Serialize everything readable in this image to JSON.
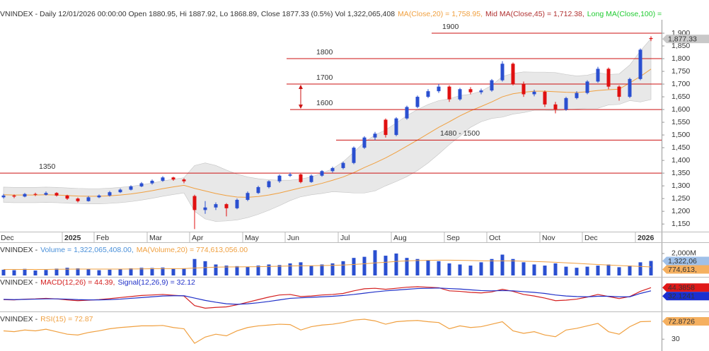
{
  "chart_data": [
    {
      "type": "candlestick",
      "header": [
        {
          "text": "VNINDEX - Daily 12/01/2026 00:00:00 Open 1880.95, Hi 1887.92, Lo 1868.89, Close 1877.33 (0.5%) Vol 1,322,065,408",
          "color": "#333333"
        },
        {
          "text": "MA(Close,20) = 1,758.95,",
          "color": "#f0a040"
        },
        {
          "text": "Mid MA(Close,45) = 1,712.38,",
          "color": "#b03030"
        },
        {
          "text": "Long MA(Close,100) =",
          "color": "#22cc33"
        }
      ],
      "categories": [
        "Dec",
        null,
        null,
        null,
        null,
        null,
        "2025",
        null,
        null,
        "Feb",
        null,
        null,
        null,
        null,
        "Mar",
        null,
        null,
        null,
        "Apr",
        null,
        null,
        null,
        null,
        "May",
        null,
        null,
        null,
        "Jun",
        null,
        null,
        null,
        null,
        "Jul",
        null,
        null,
        null,
        null,
        "Aug",
        null,
        null,
        null,
        null,
        "Sep",
        null,
        null,
        null,
        "Oct",
        null,
        null,
        null,
        null,
        "Nov",
        null,
        null,
        null,
        "Dec",
        null,
        null,
        null,
        null,
        "2026",
        null
      ],
      "open": [
        1255,
        1262,
        1258,
        1268,
        1265,
        1272,
        1262,
        1250,
        1240,
        1255,
        1262,
        1275,
        1285,
        1298,
        1310,
        1320,
        1333,
        1325,
        1260,
        1205,
        1215,
        1228,
        1212,
        1245,
        1272,
        1295,
        1318,
        1340,
        1345,
        1315,
        1340,
        1358,
        1370,
        1390,
        1450,
        1490,
        1560,
        1500,
        1565,
        1610,
        1650,
        1672,
        1690,
        1640,
        1680,
        1668,
        1675,
        1715,
        1780,
        1700,
        1660,
        1670,
        1620,
        1600,
        1645,
        1665,
        1710,
        1760,
        1690,
        1650,
        1720,
        1880.95
      ],
      "high": [
        1268,
        1266,
        1272,
        1273,
        1278,
        1275,
        1265,
        1254,
        1260,
        1266,
        1280,
        1290,
        1302,
        1315,
        1325,
        1338,
        1336,
        1330,
        1265,
        1240,
        1235,
        1232,
        1250,
        1278,
        1300,
        1322,
        1345,
        1352,
        1348,
        1345,
        1362,
        1375,
        1395,
        1455,
        1495,
        1512,
        1565,
        1570,
        1615,
        1655,
        1680,
        1700,
        1695,
        1685,
        1688,
        1682,
        1720,
        1790,
        1785,
        1710,
        1678,
        1675,
        1630,
        1650,
        1672,
        1715,
        1768,
        1765,
        1695,
        1725,
        1840,
        1887.92
      ],
      "low": [
        1250,
        1252,
        1255,
        1260,
        1262,
        1258,
        1245,
        1235,
        1238,
        1252,
        1258,
        1272,
        1282,
        1295,
        1305,
        1316,
        1320,
        1310,
        1130,
        1190,
        1205,
        1180,
        1208,
        1240,
        1268,
        1290,
        1312,
        1335,
        1310,
        1312,
        1336,
        1352,
        1365,
        1385,
        1445,
        1480,
        1490,
        1495,
        1560,
        1605,
        1645,
        1665,
        1630,
        1635,
        1660,
        1660,
        1670,
        1710,
        1695,
        1650,
        1652,
        1610,
        1585,
        1595,
        1640,
        1660,
        1705,
        1680,
        1635,
        1645,
        1715,
        1868.89
      ],
      "close": [
        1262,
        1258,
        1268,
        1265,
        1272,
        1262,
        1250,
        1240,
        1255,
        1262,
        1275,
        1285,
        1298,
        1310,
        1320,
        1333,
        1325,
        1318,
        1205,
        1215,
        1228,
        1212,
        1245,
        1272,
        1295,
        1318,
        1340,
        1345,
        1315,
        1340,
        1358,
        1370,
        1390,
        1450,
        1490,
        1505,
        1500,
        1565,
        1610,
        1650,
        1672,
        1690,
        1640,
        1680,
        1668,
        1675,
        1715,
        1780,
        1700,
        1660,
        1670,
        1620,
        1600,
        1645,
        1665,
        1710,
        1760,
        1690,
        1650,
        1720,
        1835,
        1877.33
      ],
      "up_color": "#2a4fd0",
      "down_color": "#e01010",
      "ma20": [
        1265,
        1264,
        1264,
        1264,
        1265,
        1264,
        1262,
        1260,
        1259,
        1259,
        1261,
        1264,
        1268,
        1274,
        1281,
        1289,
        1296,
        1302,
        1290,
        1280,
        1270,
        1262,
        1256,
        1255,
        1258,
        1264,
        1272,
        1282,
        1292,
        1300,
        1310,
        1322,
        1335,
        1352,
        1372,
        1390,
        1410,
        1432,
        1456,
        1480,
        1505,
        1530,
        1552,
        1575,
        1595,
        1612,
        1630,
        1650,
        1662,
        1668,
        1672,
        1672,
        1670,
        1668,
        1667,
        1670,
        1675,
        1678,
        1680,
        1705,
        1730,
        1758.95
      ],
      "ma20_color": "#f0a040",
      "band_upper": [
        1295,
        1294,
        1294,
        1294,
        1295,
        1294,
        1292,
        1290,
        1289,
        1289,
        1291,
        1294,
        1298,
        1304,
        1311,
        1319,
        1326,
        1332,
        1380,
        1390,
        1380,
        1362,
        1346,
        1335,
        1328,
        1324,
        1322,
        1322,
        1327,
        1335,
        1350,
        1367,
        1395,
        1432,
        1472,
        1500,
        1520,
        1547,
        1576,
        1600,
        1620,
        1635,
        1642,
        1655,
        1660,
        1672,
        1695,
        1730,
        1742,
        1748,
        1747,
        1747,
        1745,
        1738,
        1732,
        1735,
        1745,
        1738,
        1740,
        1775,
        1830,
        1879
      ],
      "band_lower": [
        1235,
        1234,
        1234,
        1234,
        1235,
        1234,
        1232,
        1230,
        1229,
        1229,
        1231,
        1234,
        1238,
        1244,
        1251,
        1259,
        1266,
        1272,
        1200,
        1170,
        1160,
        1162,
        1166,
        1175,
        1188,
        1204,
        1222,
        1242,
        1257,
        1265,
        1270,
        1277,
        1275,
        1272,
        1272,
        1280,
        1300,
        1317,
        1336,
        1360,
        1390,
        1425,
        1462,
        1495,
        1530,
        1552,
        1565,
        1570,
        1582,
        1588,
        1597,
        1597,
        1595,
        1598,
        1602,
        1605,
        1605,
        1618,
        1620,
        1635,
        1630,
        1639
      ],
      "band_color": "#e4e4e4",
      "annotations": [
        {
          "label": "1900",
          "value": 1900
        },
        {
          "label": "1800",
          "value": 1800
        },
        {
          "label": "1700",
          "value": 1700
        },
        {
          "label": "1600",
          "value": 1600
        },
        {
          "label": "1480 - 1500",
          "value": 1480
        },
        {
          "label": "1350",
          "value": 1350
        }
      ],
      "annotation_color": "#cc1111",
      "ylim": [
        1120,
        1950
      ],
      "yticks": [
        {
          "value": 1900,
          "label": "1,900"
        },
        {
          "value": 1850,
          "label": "1,850"
        },
        {
          "value": 1800,
          "label": "1,800"
        },
        {
          "value": 1750,
          "label": "1,750"
        },
        {
          "value": 1700,
          "label": "1,700"
        },
        {
          "value": 1650,
          "label": "1,650"
        },
        {
          "value": 1600,
          "label": "1,600"
        },
        {
          "value": 1550,
          "label": "1,550"
        },
        {
          "value": 1500,
          "label": "1,500"
        },
        {
          "value": 1450,
          "label": "1,450"
        },
        {
          "value": 1400,
          "label": "1,400"
        },
        {
          "value": 1350,
          "label": "1,350"
        },
        {
          "value": 1300,
          "label": "1,300"
        },
        {
          "value": 1250,
          "label": "1,250"
        },
        {
          "value": 1200,
          "label": "1,200"
        },
        {
          "value": 1150,
          "label": "1,150"
        }
      ],
      "tags": [
        {
          "value": 1877.33,
          "label": "1,877.33"
        }
      ],
      "tag_colors": [
        "#c8c8c8"
      ],
      "tag_text_colors": [
        "#111111"
      ]
    },
    {
      "type": "bar",
      "header": [
        {
          "text": "VNINDEX -",
          "color": "#333333"
        },
        {
          "text": "Volume = 1,322,065,408.00,",
          "color": "#4a90d9"
        },
        {
          "text": "MA(Volume,20) = 774,613,056.00",
          "color": "#f0a040"
        }
      ],
      "values": [
        520000000,
        480000000,
        600000000,
        450000000,
        500000000,
        620000000,
        700000000,
        650000000,
        550000000,
        480000000,
        520000000,
        600000000,
        650000000,
        700000000,
        680000000,
        720000000,
        600000000,
        650000000,
        1500000000,
        1300000000,
        1000000000,
        900000000,
        850000000,
        800000000,
        900000000,
        1000000000,
        950000000,
        1100000000,
        1200000000,
        900000000,
        1000000000,
        1100000000,
        1300000000,
        1600000000,
        1700000000,
        2300000000,
        1800000000,
        2000000000,
        1600000000,
        1500000000,
        1400000000,
        1300000000,
        1100000000,
        1000000000,
        900000000,
        1200000000,
        1500000000,
        1900000000,
        1500000000,
        1200000000,
        1000000000,
        900000000,
        1100000000,
        800000000,
        700000000,
        800000000,
        900000000,
        1000000000,
        750000000,
        900000000,
        1200000000,
        1322065408
      ],
      "color": "#2a4fd0",
      "ma": [
        550000000,
        550000000,
        550000000,
        550000000,
        550000000,
        560000000,
        570000000,
        580000000,
        580000000,
        580000000,
        580000000,
        580000000,
        590000000,
        600000000,
        610000000,
        620000000,
        620000000,
        620000000,
        680000000,
        720000000,
        760000000,
        770000000,
        780000000,
        790000000,
        800000000,
        820000000,
        840000000,
        860000000,
        880000000,
        890000000,
        900000000,
        920000000,
        950000000,
        1000000000,
        1060000000,
        1140000000,
        1200000000,
        1280000000,
        1330000000,
        1360000000,
        1380000000,
        1390000000,
        1390000000,
        1380000000,
        1360000000,
        1340000000,
        1330000000,
        1330000000,
        1330000000,
        1300000000,
        1270000000,
        1240000000,
        1200000000,
        1150000000,
        1100000000,
        1050000000,
        1000000000,
        950000000,
        900000000,
        860000000,
        820000000,
        774613056
      ],
      "ma_color": "#f0a040",
      "ylim": [
        0,
        2900000000
      ],
      "yticks": [
        {
          "value": 2000000000,
          "label": "2,000M"
        }
      ],
      "tags": [
        {
          "value": 1322065408,
          "label": "1,322,06"
        },
        {
          "value": 774613056,
          "label": "774,613,"
        }
      ],
      "tag_colors": [
        "#9fc0e8",
        "#f5b060"
      ],
      "tag_text_colors": [
        "#111111",
        "#111111"
      ]
    },
    {
      "type": "line",
      "header": [
        {
          "text": "VNINDEX -",
          "color": "#333333"
        },
        {
          "text": "MACD(12,26) = 44.39,",
          "color": "#d42020"
        },
        {
          "text": "Signal(12,26,9) = 32.12",
          "color": "#2030c8"
        }
      ],
      "lines": [
        {
          "color": "#d42020",
          "values": [
            -2,
            -3,
            0,
            1,
            3,
            1,
            -3,
            -6,
            -4,
            -2,
            2,
            6,
            10,
            14,
            16,
            18,
            15,
            12,
            -25,
            -35,
            -32,
            -30,
            -22,
            -12,
            -2,
            8,
            16,
            18,
            10,
            12,
            16,
            18,
            22,
            32,
            40,
            42,
            38,
            42,
            46,
            48,
            46,
            44,
            32,
            30,
            26,
            24,
            28,
            38,
            30,
            18,
            12,
            4,
            -6,
            -4,
            0,
            8,
            18,
            10,
            2,
            10,
            30,
            44.3858
          ]
        },
        {
          "color": "#2030c8",
          "values": [
            -1,
            -2,
            -1,
            0,
            1,
            1,
            0,
            -2,
            -3,
            -3,
            -2,
            0,
            3,
            6,
            9,
            12,
            13,
            13,
            4,
            -5,
            -12,
            -18,
            -20,
            -18,
            -14,
            -9,
            -3,
            3,
            5,
            7,
            9,
            11,
            14,
            18,
            23,
            28,
            32,
            35,
            38,
            41,
            42,
            43,
            41,
            39,
            36,
            33,
            32,
            33,
            32,
            29,
            26,
            22,
            16,
            12,
            10,
            9,
            11,
            11,
            9,
            9,
            22,
            32.1241
          ]
        }
      ],
      "ylim": [
        -45,
        78
      ],
      "yticks": [],
      "tags": [
        44.3858,
        32.1241
      ],
      "tag_colors": [
        "#e01818",
        "#1a2fd0"
      ],
      "tag_text_colors": [
        "#ffffff",
        "#ffffff"
      ]
    },
    {
      "type": "line",
      "header": [
        {
          "text": "VNINDEX -",
          "color": "#333333"
        },
        {
          "text": "RSI(15) = 72.87",
          "color": "#f0a040"
        }
      ],
      "lines": [
        {
          "color": "#f0a040",
          "values": [
            50,
            48,
            52,
            50,
            54,
            48,
            42,
            40,
            46,
            50,
            55,
            58,
            60,
            62,
            62,
            63,
            58,
            55,
            20,
            35,
            42,
            38,
            50,
            58,
            62,
            64,
            66,
            65,
            52,
            60,
            64,
            66,
            70,
            76,
            78,
            74,
            66,
            72,
            74,
            75,
            72,
            70,
            55,
            62,
            58,
            60,
            66,
            72,
            50,
            44,
            48,
            40,
            36,
            52,
            56,
            62,
            68,
            48,
            42,
            60,
            72,
            72.8726
          ]
        }
      ],
      "ylim": [
        10,
        95
      ],
      "yticks": [
        30
      ],
      "tags": [
        72.8726
      ],
      "tag_colors": [
        "#f5b060"
      ],
      "tag_text_colors": [
        "#111111"
      ]
    }
  ]
}
